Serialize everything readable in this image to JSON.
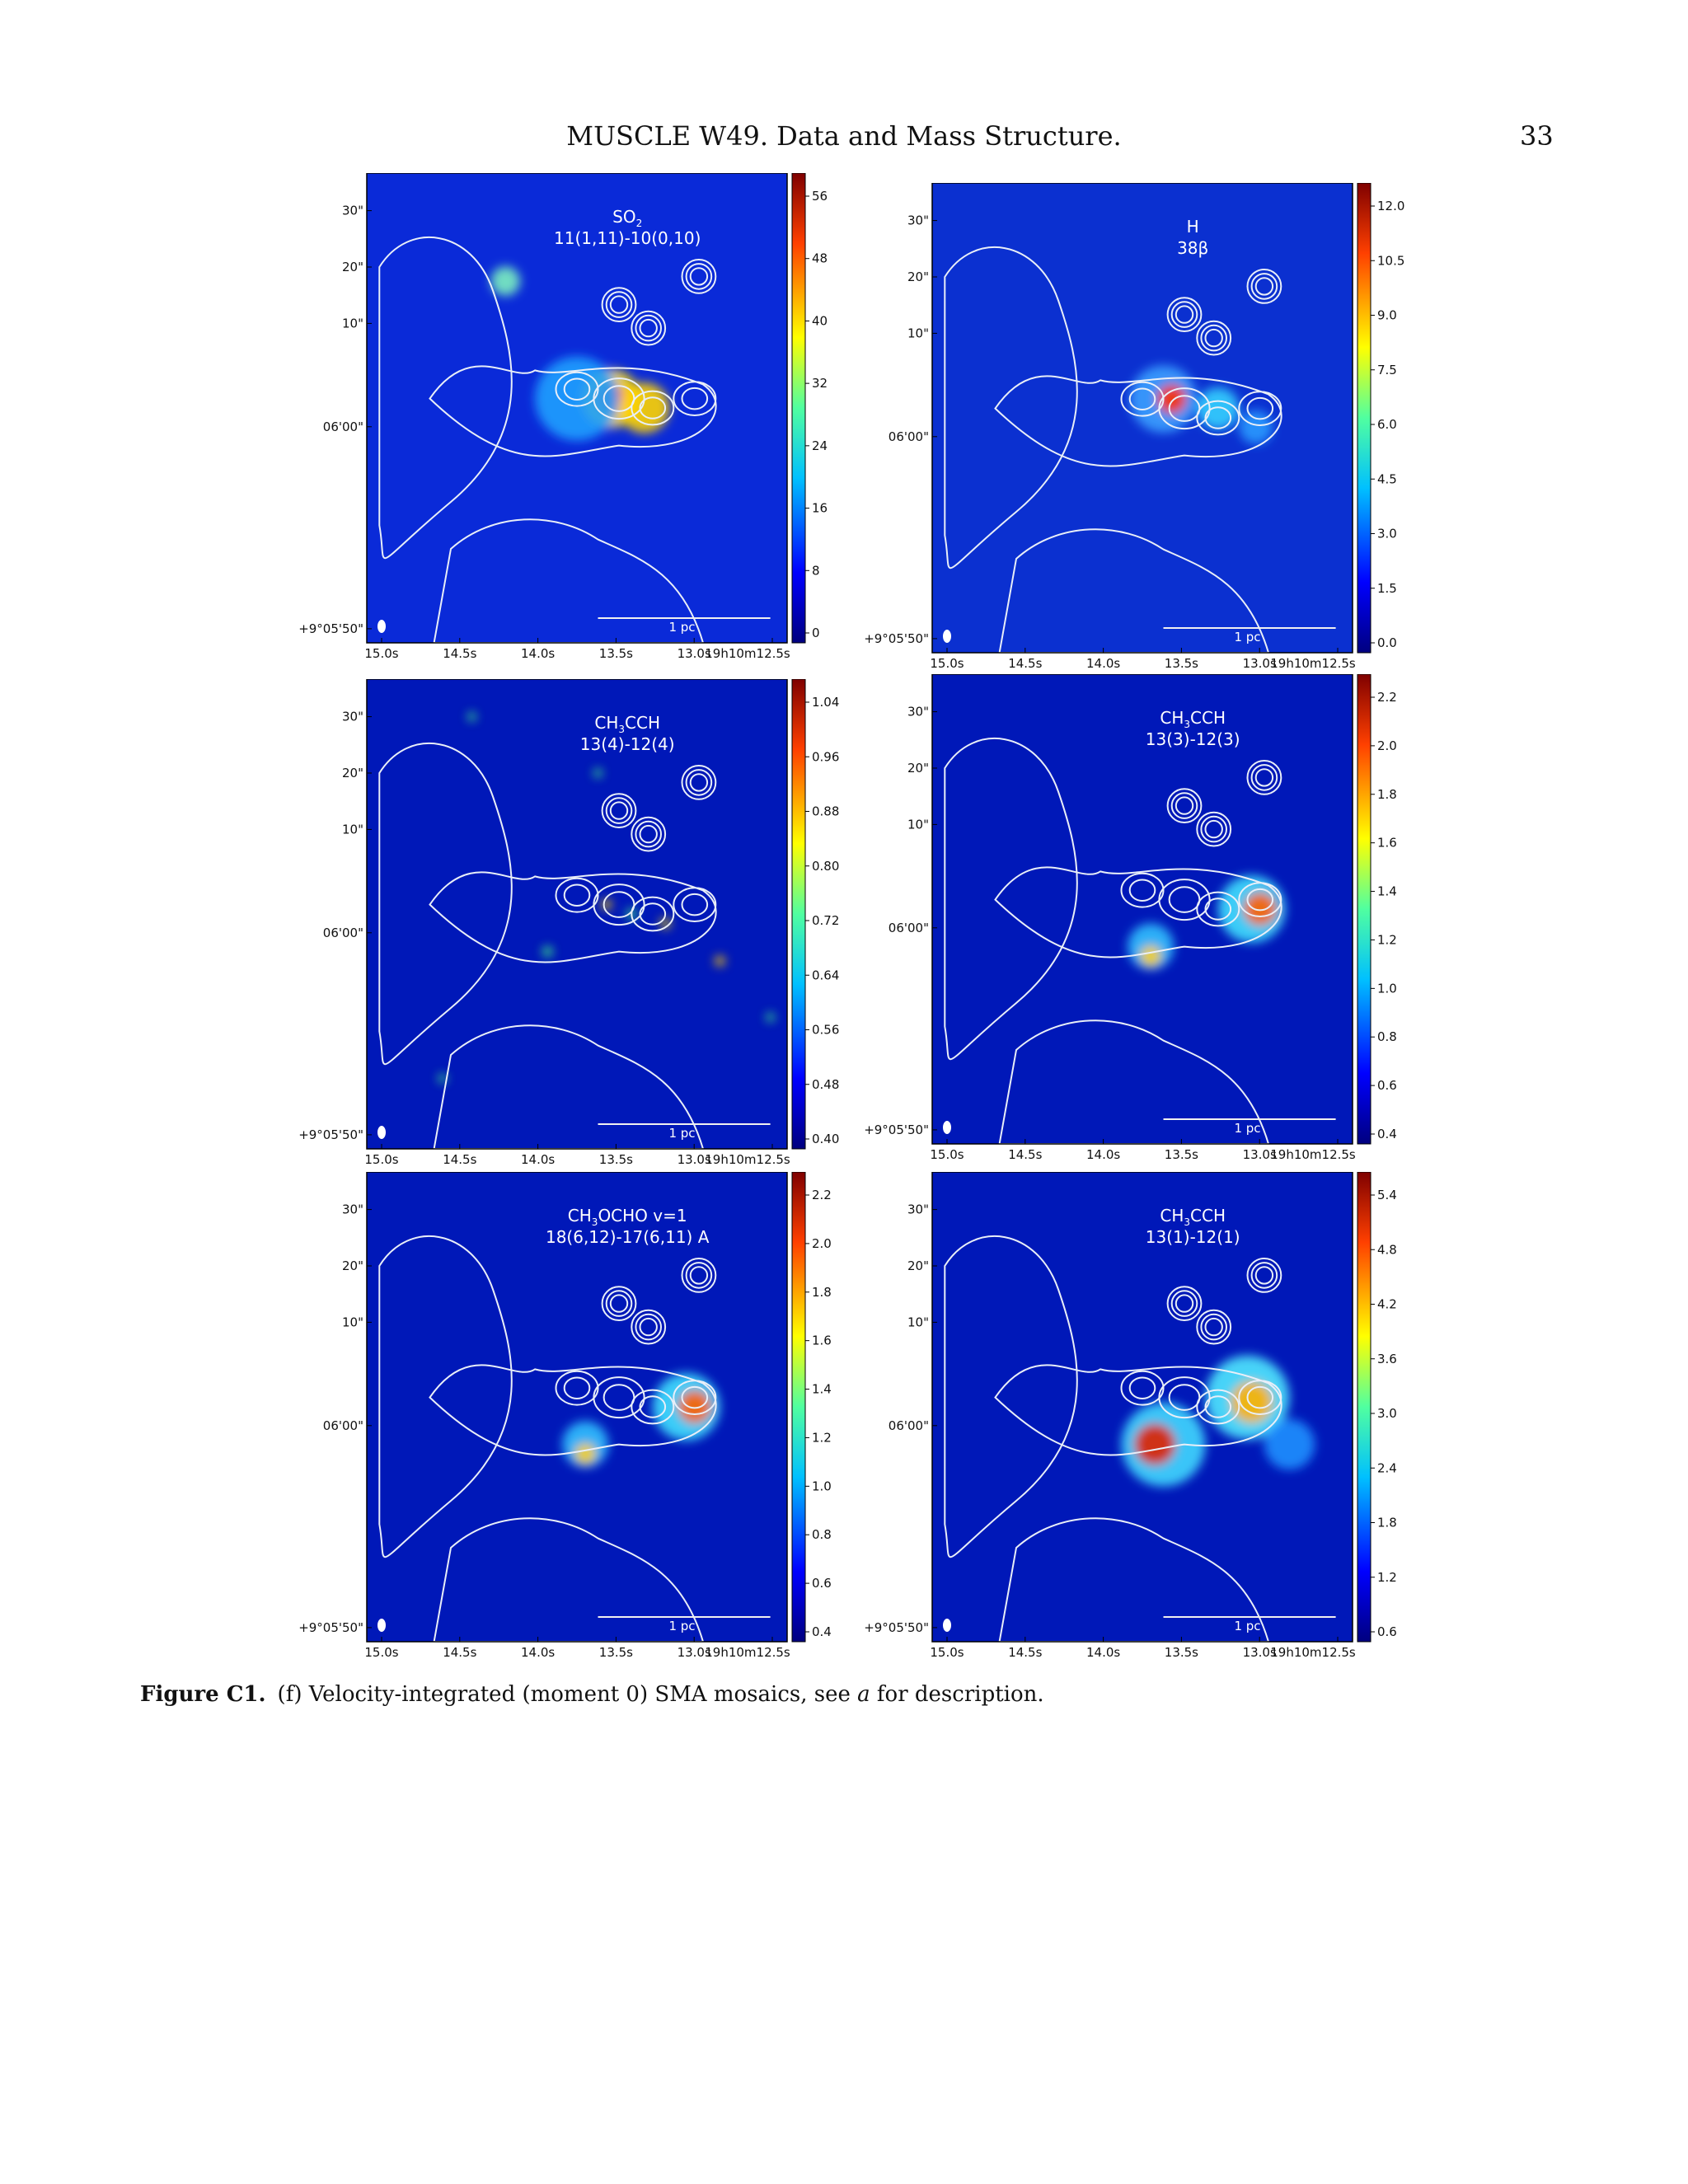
{
  "header": {
    "running_title": "MUSCLE W49. Data and Mass Structure.",
    "page_number": "33"
  },
  "axes": {
    "ra_ticks": [
      "15.0s",
      "14.5s",
      "14.0s",
      "13.5s",
      "13.0s",
      "19h10m12.5s"
    ],
    "dec_ticks": [
      "30\"",
      "20\"",
      "10\"",
      "06'00\"",
      "+9°05'50\""
    ],
    "scalebar_label": "1 pc"
  },
  "panels": [
    {
      "species": "SO",
      "subscript": "2",
      "tail": "",
      "transition": "11(1,11)-10(0,10)",
      "line2_suffix": "",
      "colorbar_ticks": [
        "56",
        "48",
        "40",
        "32",
        "24",
        "16",
        "8",
        "0"
      ],
      "peak": "so2"
    },
    {
      "species": "H",
      "subscript": "",
      "tail": "",
      "transition": "38β",
      "line2_suffix": "",
      "colorbar_ticks": [
        "12.0",
        "10.5",
        "9.0",
        "7.5",
        "6.0",
        "4.5",
        "3.0",
        "1.5",
        "0.0"
      ],
      "peak": "h38b"
    },
    {
      "species": "CH",
      "subscript": "3",
      "tail": "CCH",
      "transition": "13(4)-12(4)",
      "line2_suffix": "",
      "colorbar_ticks": [
        "1.04",
        "0.96",
        "0.88",
        "0.80",
        "0.72",
        "0.64",
        "0.56",
        "0.48",
        "0.40"
      ],
      "peak": "noise"
    },
    {
      "species": "CH",
      "subscript": "3",
      "tail": "CCH",
      "transition": "13(3)-12(3)",
      "line2_suffix": "",
      "colorbar_ticks": [
        "2.2",
        "2.0",
        "1.8",
        "1.6",
        "1.4",
        "1.2",
        "1.0",
        "0.8",
        "0.6",
        "0.4"
      ],
      "peak": "hot"
    },
    {
      "species": "CH",
      "subscript": "3",
      "tail": "OCHO v=1",
      "transition": "18(6,12)-17(6,11)",
      "line2_suffix": "A",
      "colorbar_ticks": [
        "2.2",
        "2.0",
        "1.8",
        "1.6",
        "1.4",
        "1.2",
        "1.0",
        "0.8",
        "0.6",
        "0.4"
      ],
      "peak": "hot"
    },
    {
      "species": "CH",
      "subscript": "3",
      "tail": "CCH",
      "transition": "13(1)-12(1)",
      "line2_suffix": "",
      "colorbar_ticks": [
        "5.4",
        "4.8",
        "4.2",
        "3.6",
        "3.0",
        "2.4",
        "1.8",
        "1.2",
        "0.6"
      ],
      "peak": "hotstrong"
    }
  ],
  "caption": {
    "label": "Figure C1.",
    "text_before": "(f) Velocity-integrated (moment 0) SMA mosaics, see ",
    "italic": "a",
    "text_after": " for description."
  }
}
